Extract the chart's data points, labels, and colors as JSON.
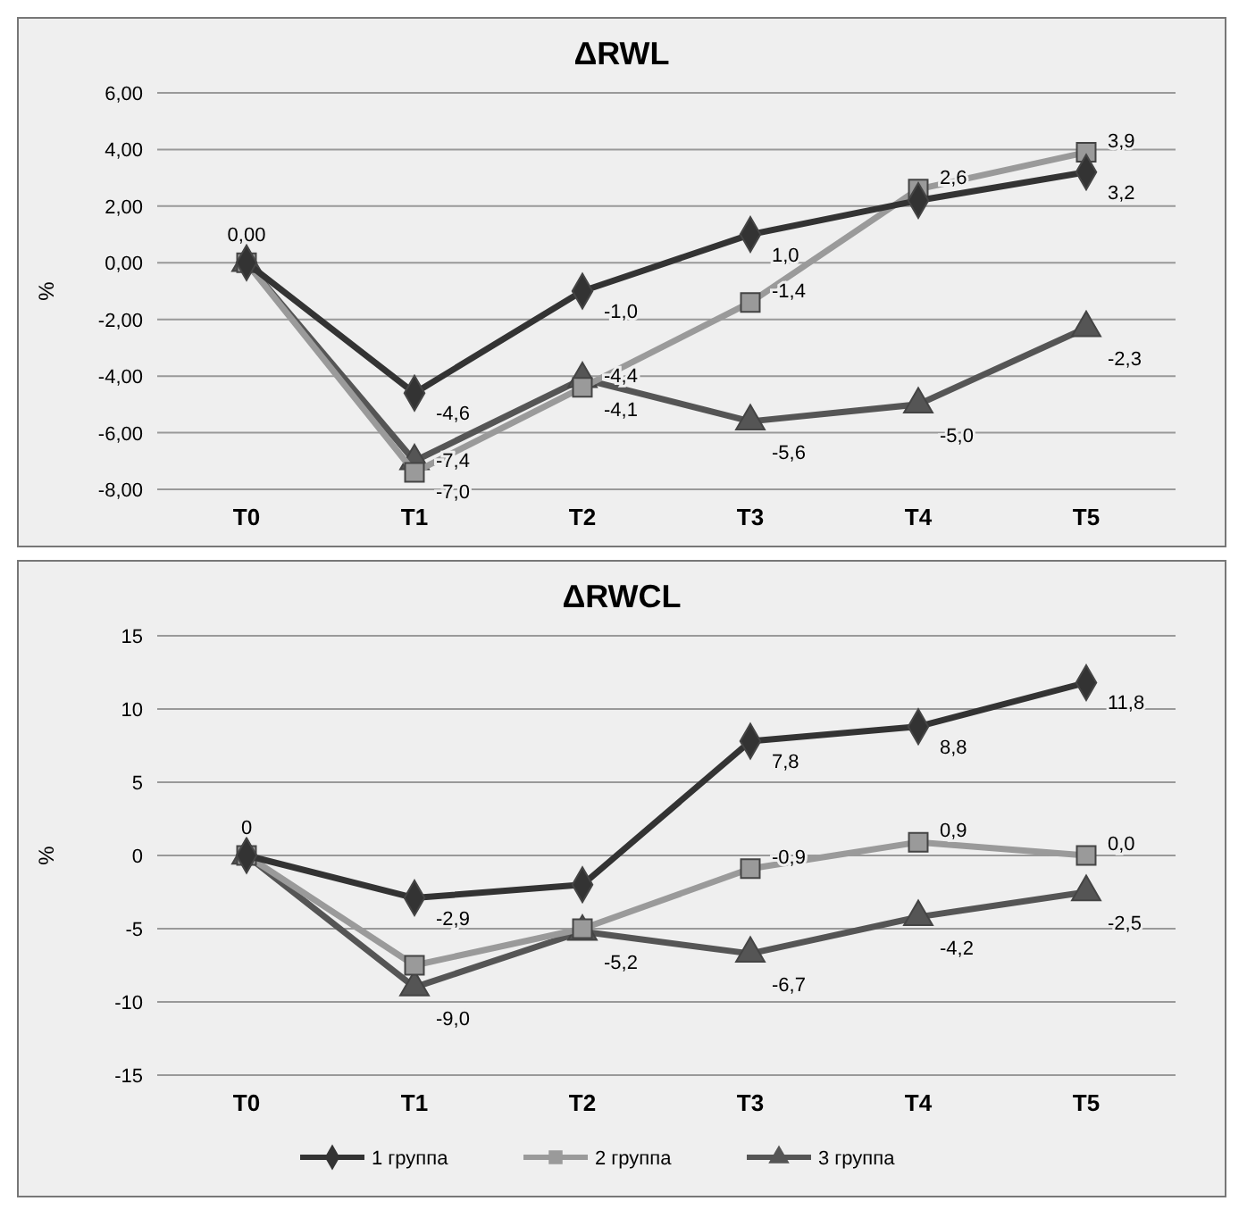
{
  "chart_data": [
    {
      "type": "line",
      "title": "ΔRWL",
      "ylabel": "%",
      "categories": [
        "T0",
        "T1",
        "T2",
        "T3",
        "T4",
        "T5"
      ],
      "ylim": [
        -8,
        6
      ],
      "yticks": [
        {
          "value": -8,
          "label": "-8,00"
        },
        {
          "value": -6,
          "label": "-6,00"
        },
        {
          "value": -4,
          "label": "-4,00"
        },
        {
          "value": -2,
          "label": "-2,00"
        },
        {
          "value": 0,
          "label": "0,00"
        },
        {
          "value": 2,
          "label": "2,00"
        },
        {
          "value": 4,
          "label": "4,00"
        },
        {
          "value": 6,
          "label": "6,00"
        }
      ],
      "grid": "y",
      "legend": false,
      "series": [
        {
          "color": "#333333",
          "marker": "diamond",
          "values": [
            0,
            -4.6,
            -1.0,
            1.0,
            2.2,
            3.2
          ],
          "value_labels": [
            "0,00",
            "-4,6",
            "-1,0",
            "1,0",
            null,
            "3,2"
          ]
        },
        {
          "color": "#9a9a9a",
          "marker": "square",
          "values": [
            0,
            -7.4,
            -4.4,
            -1.4,
            2.6,
            3.9
          ],
          "value_labels": [
            null,
            "-7,4",
            "-4,4",
            "-1,4",
            "2,6",
            "3,9"
          ]
        },
        {
          "color": "#555555",
          "marker": "triangle",
          "values": [
            0,
            -7.0,
            -4.1,
            -5.6,
            -5.0,
            -2.3
          ],
          "value_labels": [
            null,
            "-7,0",
            "-4,1",
            "-5,6",
            "-5,0",
            "-2,3"
          ]
        }
      ]
    },
    {
      "type": "line",
      "title": "ΔRWCL",
      "ylabel": "%",
      "categories": [
        "T0",
        "T1",
        "T2",
        "T3",
        "T4",
        "T5"
      ],
      "ylim": [
        -15,
        15
      ],
      "yticks": [
        -15,
        -10,
        -5,
        0,
        5,
        10,
        15
      ],
      "grid": "y",
      "legend": "bottom",
      "series": [
        {
          "name": "1 группа",
          "color": "#333333",
          "marker": "diamond",
          "values": [
            0,
            -2.9,
            -2.0,
            7.8,
            8.8,
            11.8
          ],
          "value_labels": [
            "0",
            "-2,9",
            null,
            "7,8",
            "8,8",
            "11,8"
          ]
        },
        {
          "name": "2 группа",
          "color": "#9a9a9a",
          "marker": "square",
          "values": [
            0,
            -7.5,
            -5.0,
            -0.9,
            0.9,
            0.0
          ],
          "value_labels": [
            null,
            null,
            null,
            "-0,9",
            "0,9",
            "0,0"
          ]
        },
        {
          "name": "3 группа",
          "color": "#555555",
          "marker": "triangle",
          "values": [
            0,
            -9.0,
            -5.2,
            -6.7,
            -4.2,
            -2.5
          ],
          "value_labels": [
            null,
            "-9,0",
            "-5,2",
            "-6,7",
            "-4,2",
            "-2,5"
          ]
        }
      ]
    }
  ]
}
